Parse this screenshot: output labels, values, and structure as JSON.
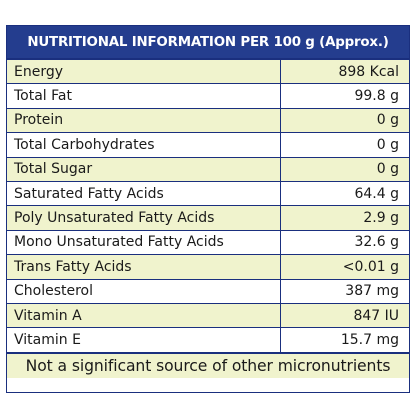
{
  "header": {
    "title": "NUTRITIONAL INFORMATION PER 100 g (Approx.)"
  },
  "rows": [
    {
      "label": "Energy",
      "value": "898 Kcal"
    },
    {
      "label": "Total Fat",
      "value": "99.8 g"
    },
    {
      "label": "Protein",
      "value": "0 g"
    },
    {
      "label": "Total Carbohydrates",
      "value": "0 g"
    },
    {
      "label": "Total Sugar",
      "value": "0 g"
    },
    {
      "label": "Saturated Fatty Acids",
      "value": "64.4 g"
    },
    {
      "label": "Poly Unsaturated Fatty Acids",
      "value": "2.9 g"
    },
    {
      "label": "Mono Unsaturated Fatty Acids",
      "value": "32.6 g"
    },
    {
      "label": "Trans Fatty Acids",
      "value": "<0.01 g"
    },
    {
      "label": "Cholesterol",
      "value": "387 mg"
    },
    {
      "label": "Vitamin A",
      "value": "847 IU"
    },
    {
      "label": "Vitamin E",
      "value": "15.7 mg"
    }
  ],
  "footer": {
    "note": "Not a significant source of other micronutrients"
  },
  "colors": {
    "header_bg": "#243d8e",
    "border": "#1a2f7e",
    "row_tint": "#f0f3cd",
    "row_plain": "#ffffff"
  }
}
